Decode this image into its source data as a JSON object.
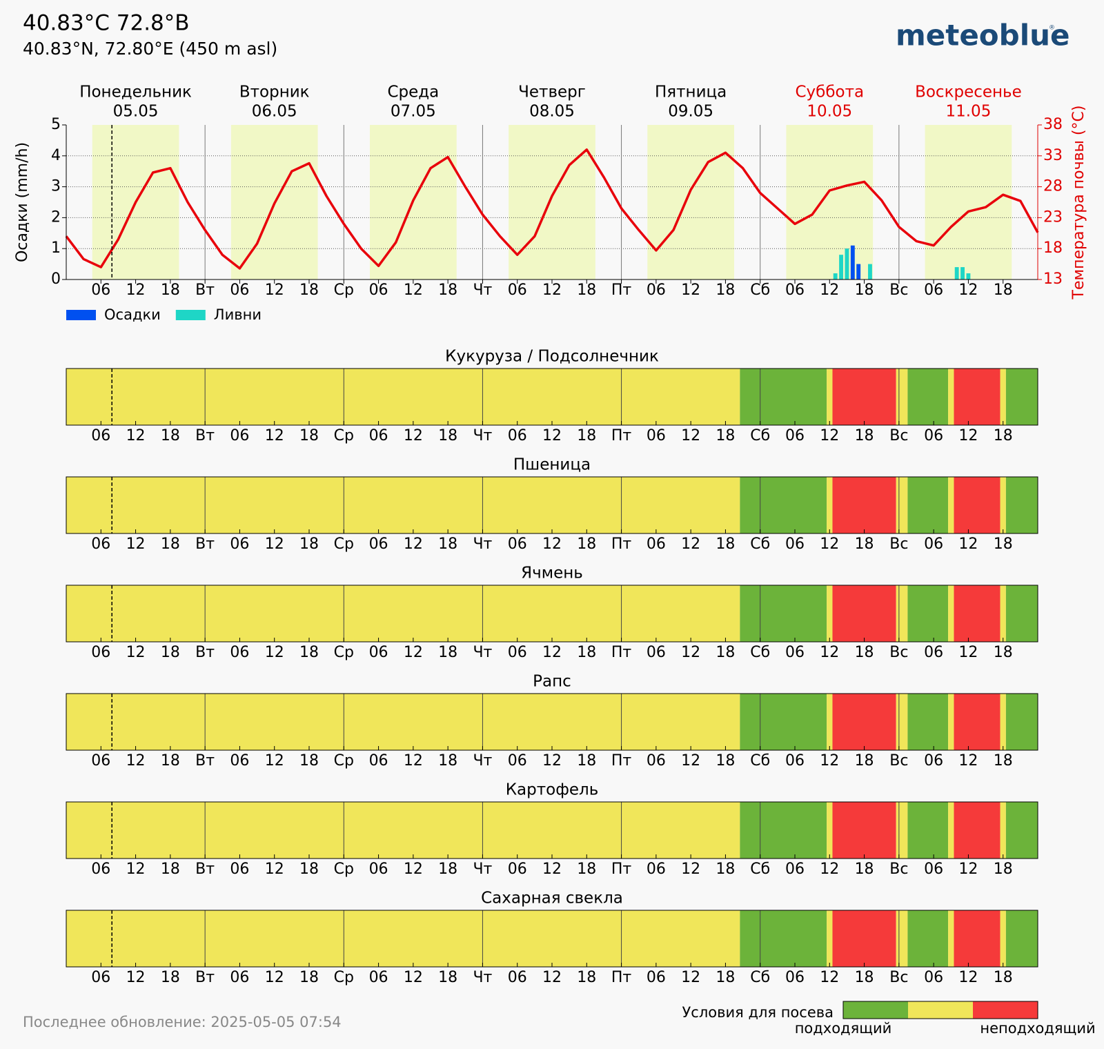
{
  "header": {
    "title": "40.83°C 72.8°B",
    "subtitle": "40.83°N, 72.80°E (450 m asl)",
    "logo": "meteoblue",
    "logo_mark": "®"
  },
  "footer": "Последнее обновление: 2025-05-05 07:54",
  "chart_data": [
    {
      "type": "meteogram",
      "days": [
        {
          "name": "Понедельник",
          "date": "05.05",
          "weekend": false
        },
        {
          "name": "Вторник",
          "date": "06.05",
          "weekend": false
        },
        {
          "name": "Среда",
          "date": "07.05",
          "weekend": false
        },
        {
          "name": "Четверг",
          "date": "08.05",
          "weekend": false
        },
        {
          "name": "Пятница",
          "date": "09.05",
          "weekend": false
        },
        {
          "name": "Суббота",
          "date": "10.05",
          "weekend": true
        },
        {
          "name": "Воскресенье",
          "date": "11.05",
          "weekend": true
        }
      ],
      "weekend_color": "#e00000",
      "xlim": [
        0,
        168
      ],
      "xticks": [
        {
          "value": 6,
          "label": "06"
        },
        12,
        18,
        {
          "value": 24,
          "label": "Вт"
        },
        {
          "value": 30,
          "label": "06"
        },
        {
          "value": 36,
          "label": "12"
        },
        {
          "value": 42,
          "label": "18"
        },
        {
          "value": 48,
          "label": "Ср"
        },
        {
          "value": 54,
          "label": "06"
        },
        {
          "value": 60,
          "label": "12"
        },
        {
          "value": 66,
          "label": "18"
        },
        {
          "value": 72,
          "label": "Чт"
        },
        {
          "value": 78,
          "label": "06"
        },
        {
          "value": 84,
          "label": "12"
        },
        {
          "value": 90,
          "label": "18"
        },
        {
          "value": 96,
          "label": "Пт"
        },
        {
          "value": 102,
          "label": "06"
        },
        {
          "value": 108,
          "label": "12"
        },
        {
          "value": 114,
          "label": "18"
        },
        {
          "value": 120,
          "label": "Сб"
        },
        {
          "value": 126,
          "label": "06"
        },
        {
          "value": 132,
          "label": "12"
        },
        {
          "value": 138,
          "label": "18"
        },
        {
          "value": 144,
          "label": "Вс"
        },
        {
          "value": 150,
          "label": "06"
        },
        {
          "value": 156,
          "label": "12"
        },
        {
          "value": 162,
          "label": "18"
        }
      ],
      "ylim": [
        0,
        5
      ],
      "yticks": [
        0,
        1,
        2,
        3,
        4,
        5
      ],
      "ylabel": "Осадки (mm/h)",
      "grid": true,
      "y2lim": [
        13,
        38
      ],
      "y2ticks": [
        13,
        18,
        23,
        28,
        33,
        38
      ],
      "y2label": "Температура почвы (°C)",
      "y2color": "#e00000",
      "daylight": [
        4.5,
        19.5
      ],
      "daylight_color": "#f1f8c6",
      "now": 7.9,
      "series": [
        {
          "name": "Осадки",
          "type": "bar",
          "color": "#0050f0",
          "x": [
            136,
            137
          ],
          "values": [
            1.1,
            0.5
          ]
        },
        {
          "name": "Ливни",
          "type": "bar",
          "color": "#1ed6c6",
          "x": [
            133,
            134,
            135,
            139,
            154,
            155,
            156
          ],
          "values": [
            0.2,
            0.8,
            1.0,
            0.5,
            0.4,
            0.4,
            0.2
          ]
        },
        {
          "type": "line",
          "axis": "y2",
          "color": "#e8000b",
          "x": [
            0,
            3,
            6,
            9,
            12,
            15,
            18,
            21,
            24,
            27,
            30,
            33,
            36,
            39,
            42,
            45,
            48,
            51,
            54,
            57,
            60,
            63,
            66,
            69,
            72,
            75,
            78,
            81,
            84,
            87,
            90,
            93,
            96,
            99,
            102,
            105,
            108,
            111,
            114,
            117,
            120,
            123,
            126,
            129,
            132,
            135,
            138,
            141,
            144,
            147,
            150,
            153,
            156,
            159,
            162,
            165,
            168
          ],
          "values": [
            20.0,
            16.3,
            15.0,
            19.5,
            25.5,
            30.3,
            31.0,
            25.5,
            21.0,
            17.0,
            14.8,
            18.8,
            25.3,
            30.5,
            31.8,
            26.5,
            22.0,
            18.0,
            15.2,
            19.0,
            25.8,
            31.0,
            32.8,
            28.0,
            23.5,
            20.0,
            17.0,
            20.0,
            26.5,
            31.5,
            34.0,
            29.5,
            24.5,
            21.0,
            17.7,
            21.0,
            27.5,
            32.0,
            33.5,
            31.0,
            27.0,
            24.5,
            22.0,
            23.5,
            27.4,
            28.2,
            28.8,
            25.8,
            21.5,
            19.2,
            18.5,
            21.5,
            24.0,
            24.7,
            26.7,
            25.7,
            20.6
          ]
        }
      ]
    },
    {
      "type": "crop-conditions",
      "xlim": [
        0,
        168
      ],
      "colors": [
        "#6cb33a",
        "#f0e65a",
        "#f53a3a"
      ],
      "legend_title": "Условия для посева",
      "legend_labels": [
        "подходящий",
        "неподходящий"
      ],
      "panels": [
        {
          "title": "Кукуруза / Подсолнечник",
          "edges": [
            0,
            116.5,
            131.5,
            132.5,
            143.5,
            145.5,
            152.5,
            153.5,
            161.5,
            162.5,
            168
          ],
          "levels": [
            1,
            0,
            1,
            2,
            1,
            0,
            1,
            2,
            1,
            0
          ]
        },
        {
          "title": "Пшеница",
          "edges": [
            0,
            116.5,
            131.5,
            132.5,
            143.5,
            145.5,
            152.5,
            153.5,
            161.5,
            162.5,
            168
          ],
          "levels": [
            1,
            0,
            1,
            2,
            1,
            0,
            1,
            2,
            1,
            0
          ]
        },
        {
          "title": "Ячмень",
          "edges": [
            0,
            116.5,
            131.5,
            132.5,
            143.5,
            145.5,
            152.5,
            153.5,
            161.5,
            162.5,
            168
          ],
          "levels": [
            1,
            0,
            1,
            2,
            1,
            0,
            1,
            2,
            1,
            0
          ]
        },
        {
          "title": "Рапс",
          "edges": [
            0,
            116.5,
            131.5,
            132.5,
            143.5,
            145.5,
            152.5,
            153.5,
            161.5,
            162.5,
            168
          ],
          "levels": [
            1,
            0,
            1,
            2,
            1,
            0,
            1,
            2,
            1,
            0
          ]
        },
        {
          "title": "Картофель",
          "edges": [
            0,
            116.5,
            131.5,
            132.5,
            143.5,
            145.5,
            152.5,
            153.5,
            161.5,
            162.5,
            168
          ],
          "levels": [
            1,
            0,
            1,
            2,
            1,
            0,
            1,
            2,
            1,
            0
          ]
        },
        {
          "title": "Сахарная свекла",
          "edges": [
            0,
            116.5,
            131.5,
            132.5,
            143.5,
            145.5,
            152.5,
            153.5,
            161.5,
            162.5,
            168
          ],
          "levels": [
            1,
            0,
            1,
            2,
            1,
            0,
            1,
            2,
            1,
            0
          ]
        }
      ]
    }
  ]
}
